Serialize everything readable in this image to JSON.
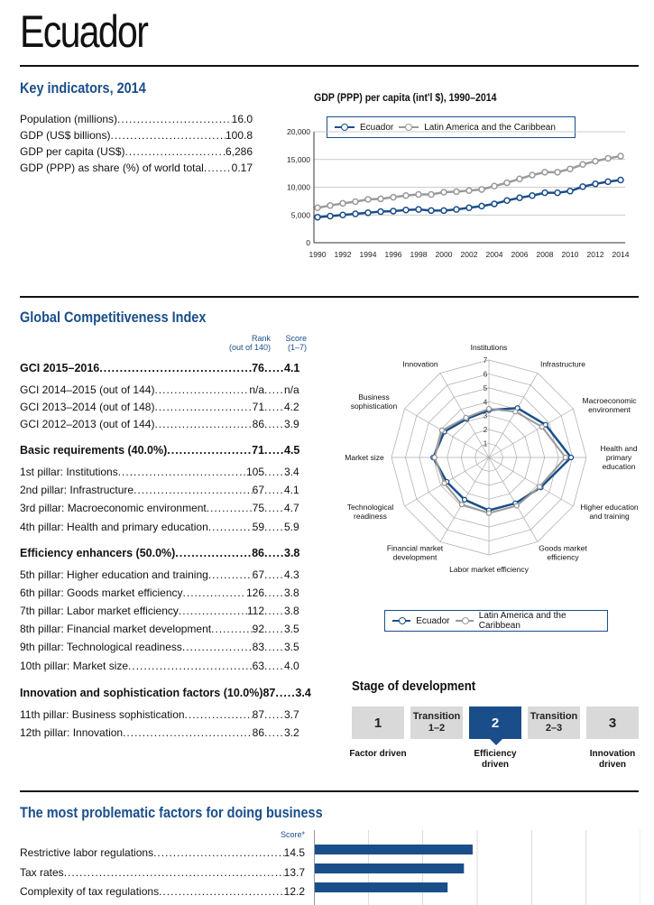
{
  "country": "Ecuador",
  "key_indicators": {
    "heading": "Key indicators, 2014",
    "rows": [
      {
        "label": "Population (millions)",
        "value": "16.0"
      },
      {
        "label": "GDP (US$ billions)",
        "value": "100.8"
      },
      {
        "label": "GDP per capita (US$)",
        "value": "6,286"
      },
      {
        "label": "GDP (PPP) as share (%) of world total",
        "value": "0.17"
      }
    ]
  },
  "gdp_chart": {
    "title": "GDP (PPP) per capita (int'l $), 1990–2014",
    "legend": [
      "Ecuador",
      "Latin America and the Caribbean"
    ],
    "colors": {
      "ecuador": "#1a4e8a",
      "lac": "#999999"
    }
  },
  "gci": {
    "heading": "Global Competitiveness Index",
    "rank_header": "Rank",
    "rank_sub": "(out of 140)",
    "score_header": "Score",
    "score_sub": "(1–7)",
    "rows": [
      {
        "label": "GCI 2015–2016",
        "rank": "76",
        "score": "4.1",
        "bold": true
      },
      {
        "label": "GCI 2014–2015 (out of 144)",
        "rank": "n/a",
        "score": "n/a"
      },
      {
        "label": "GCI 2013–2014 (out of 148)",
        "rank": "71",
        "score": "4.2"
      },
      {
        "label": "GCI 2012–2013 (out of 144)",
        "rank": "86",
        "score": "3.9"
      },
      {
        "label": "Basic requirements (40.0%)",
        "rank": "71",
        "score": "4.5",
        "bold": true
      },
      {
        "label": "1st pillar: Institutions",
        "rank": "105",
        "score": "3.4"
      },
      {
        "label": "2nd pillar: Infrastructure",
        "rank": "67",
        "score": "4.1"
      },
      {
        "label": "3rd pillar: Macroeconomic environment",
        "rank": "75",
        "score": "4.7"
      },
      {
        "label": "4th pillar: Health and primary education",
        "rank": "59",
        "score": "5.9"
      },
      {
        "label": "Efficiency enhancers (50.0%)",
        "rank": "86",
        "score": "3.8",
        "bold": true
      },
      {
        "label": "5th pillar: Higher education and training",
        "rank": "67",
        "score": "4.3"
      },
      {
        "label": "6th pillar: Goods market efficiency",
        "rank": "126",
        "score": "3.8"
      },
      {
        "label": "7th pillar: Labor market efficiency",
        "rank": "112",
        "score": "3.8"
      },
      {
        "label": "8th pillar: Financial market development",
        "rank": "92",
        "score": "3.5"
      },
      {
        "label": "9th pillar: Technological readiness",
        "rank": "83",
        "score": "3.5"
      },
      {
        "label": "10th pillar: Market size",
        "rank": "63",
        "score": "4.0"
      },
      {
        "label": "Innovation and sophistication factors (10.0%)",
        "rank": "87",
        "score": "3.4",
        "bold": true
      },
      {
        "label": "11th pillar: Business sophistication",
        "rank": "87",
        "score": "3.7"
      },
      {
        "label": "12th pillar: Innovation",
        "rank": "86",
        "score": "3.2"
      }
    ]
  },
  "radar_chart": {
    "legend": [
      "Ecuador",
      "Latin America and the Caribbean"
    ],
    "axis_labels": [
      "Institutions",
      "Infrastructure",
      "Macroeconomic environment",
      "Health and primary education",
      "Higher education and training",
      "Goods market efficiency",
      "Labor market efficiency",
      "Financial market development",
      "Technological readiness",
      "Market size",
      "Business sophistication",
      "Innovation"
    ],
    "tick_labels": [
      "1",
      "2",
      "3",
      "4",
      "5",
      "6",
      "7"
    ]
  },
  "stage": {
    "heading": "Stage of development",
    "boxes": [
      {
        "label": "1",
        "caption": "Factor driven"
      },
      {
        "label": "Transition 1–2",
        "caption": ""
      },
      {
        "label": "2",
        "caption": "Efficiency driven",
        "active": true
      },
      {
        "label": "Transition 2–3",
        "caption": ""
      },
      {
        "label": "3",
        "caption": "Innovation driven"
      }
    ]
  },
  "problematic": {
    "heading": "The most problematic factors for doing business",
    "score_header": "Score*",
    "rows": [
      {
        "label": "Restrictive labor regulations",
        "value": "14.5"
      },
      {
        "label": "Tax rates",
        "value": "13.7"
      },
      {
        "label": "Complexity of tax regulations",
        "value": "12.2"
      }
    ]
  },
  "chart_data": [
    {
      "type": "line",
      "title": "GDP (PPP) per capita (int'l $), 1990–2014",
      "x": [
        1990,
        1991,
        1992,
        1993,
        1994,
        1995,
        1996,
        1997,
        1998,
        1999,
        2000,
        2001,
        2002,
        2003,
        2004,
        2005,
        2006,
        2007,
        2008,
        2009,
        2010,
        2011,
        2012,
        2013,
        2014
      ],
      "x_ticks": [
        "1990",
        "1992",
        "1994",
        "1996",
        "1998",
        "2000",
        "2002",
        "2004",
        "2006",
        "2008",
        "2010",
        "2012",
        "2014"
      ],
      "y_ticks": [
        "0",
        "5,000",
        "10,000",
        "15,000",
        "20,000"
      ],
      "ylim": [
        0,
        20000
      ],
      "series": [
        {
          "name": "Ecuador",
          "values": [
            4600,
            4800,
            5000,
            5200,
            5400,
            5600,
            5700,
            5900,
            6000,
            5800,
            5800,
            6000,
            6300,
            6600,
            7000,
            7600,
            8100,
            8500,
            9000,
            9000,
            9300,
            10100,
            10600,
            11000,
            11300
          ]
        },
        {
          "name": "Latin America and the Caribbean",
          "values": [
            6300,
            6700,
            7100,
            7400,
            7800,
            7900,
            8200,
            8500,
            8700,
            8700,
            9100,
            9200,
            9400,
            9600,
            10200,
            10800,
            11500,
            12200,
            12700,
            12700,
            13300,
            14100,
            14700,
            15200,
            15600
          ]
        }
      ]
    },
    {
      "type": "radar",
      "categories": [
        "Institutions",
        "Infrastructure",
        "Macroeconomic environment",
        "Health and primary education",
        "Higher education and training",
        "Goods market efficiency",
        "Labor market efficiency",
        "Financial market development",
        "Technological readiness",
        "Market size",
        "Business sophistication",
        "Innovation"
      ],
      "rlim": [
        1,
        7
      ],
      "series": [
        {
          "name": "Ecuador",
          "values": [
            3.4,
            4.1,
            4.7,
            5.9,
            4.3,
            3.8,
            3.8,
            3.5,
            3.5,
            4.0,
            3.7,
            3.2
          ]
        },
        {
          "name": "Latin America and the Caribbean",
          "values": [
            3.5,
            3.8,
            4.4,
            5.5,
            4.2,
            4.0,
            4.0,
            3.9,
            3.7,
            3.9,
            3.9,
            3.3
          ]
        }
      ]
    },
    {
      "type": "bar",
      "categories": [
        "Restrictive labor regulations",
        "Tax rates",
        "Complexity of tax regulations"
      ],
      "values": [
        14.5,
        13.7,
        12.2
      ],
      "xlim": [
        0,
        30
      ]
    }
  ]
}
